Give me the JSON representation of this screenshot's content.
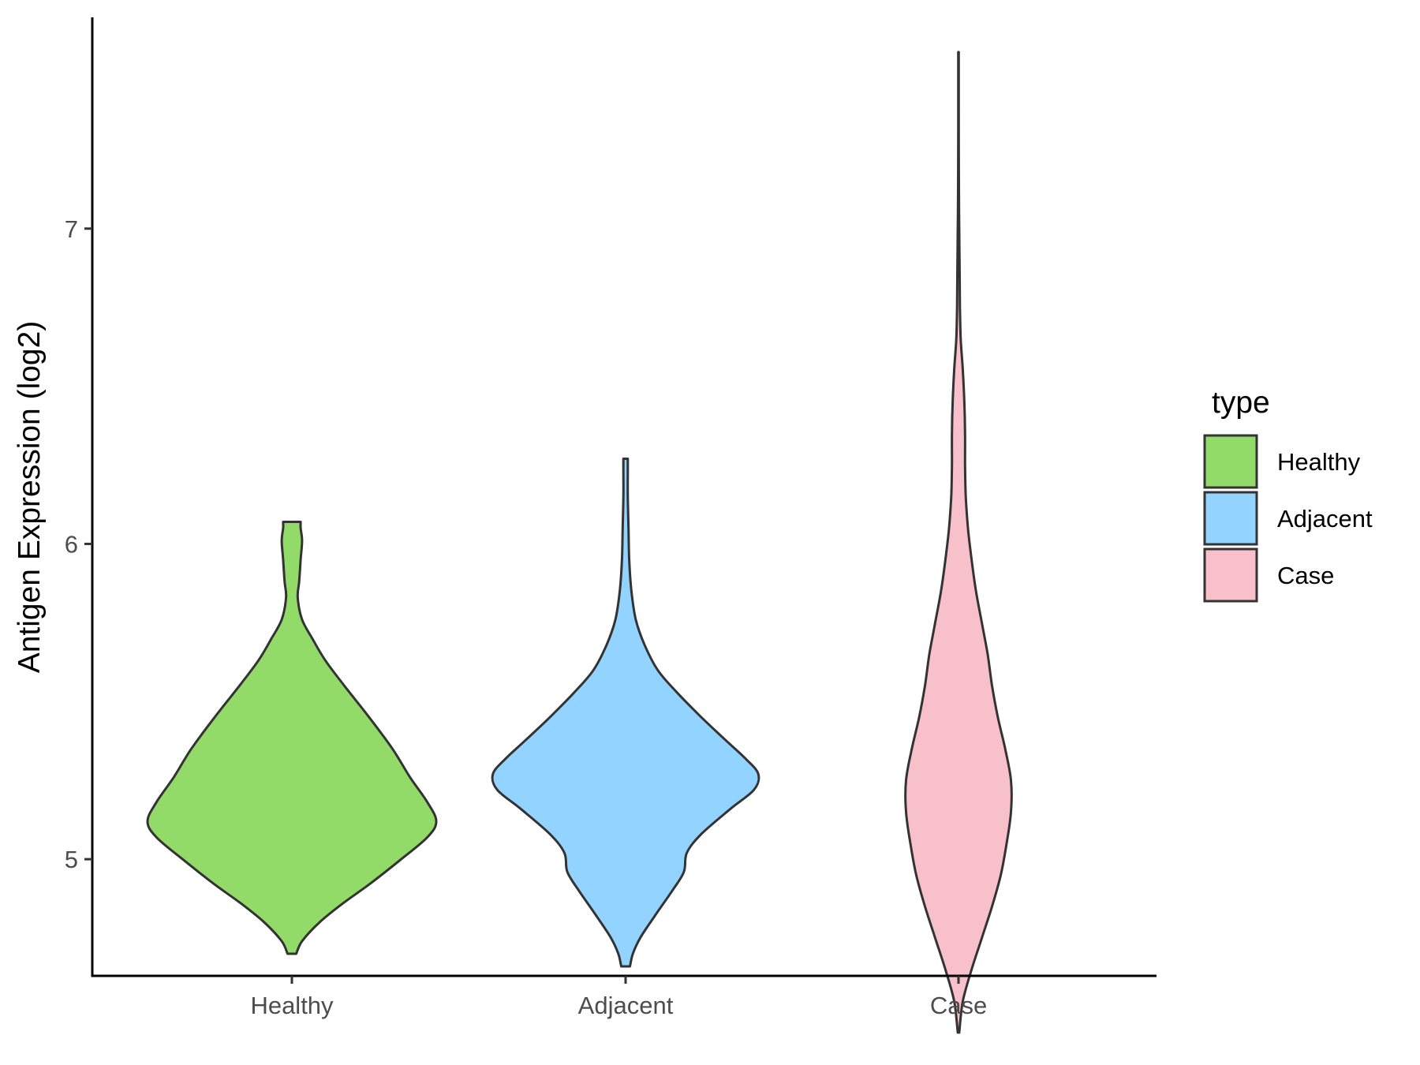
{
  "chart_data": {
    "type": "violin",
    "title": "",
    "xlabel": "",
    "ylabel": "Antigen Expression (log2)",
    "ylim": [
      4.63,
      7.67
    ],
    "yticks": [
      5,
      6,
      7
    ],
    "yticklabels": [
      "5",
      "6",
      "7"
    ],
    "grid": false,
    "categories": [
      "Healthy",
      "Adjacent",
      "Case"
    ],
    "series": [
      {
        "name": "Healthy",
        "color": "#93DB69",
        "range": [
          4.7,
          6.07
        ],
        "density": [
          [
            4.7,
            0.03
          ],
          [
            4.74,
            0.07
          ],
          [
            4.8,
            0.19
          ],
          [
            4.86,
            0.35
          ],
          [
            4.92,
            0.53
          ],
          [
            5.0,
            0.75
          ],
          [
            5.07,
            0.93
          ],
          [
            5.12,
            0.99
          ],
          [
            5.18,
            0.93
          ],
          [
            5.26,
            0.81
          ],
          [
            5.35,
            0.69
          ],
          [
            5.45,
            0.53
          ],
          [
            5.55,
            0.36
          ],
          [
            5.63,
            0.23
          ],
          [
            5.7,
            0.14
          ],
          [
            5.76,
            0.07
          ],
          [
            5.83,
            0.04
          ],
          [
            5.88,
            0.05
          ],
          [
            5.95,
            0.06
          ],
          [
            6.01,
            0.07
          ],
          [
            6.05,
            0.06
          ],
          [
            6.07,
            0.06
          ]
        ]
      },
      {
        "name": "Adjacent",
        "color": "#92D3FF",
        "range": [
          4.66,
          6.27
        ],
        "density": [
          [
            4.66,
            0.03
          ],
          [
            4.7,
            0.05
          ],
          [
            4.75,
            0.1
          ],
          [
            4.82,
            0.2
          ],
          [
            4.9,
            0.32
          ],
          [
            4.96,
            0.4
          ],
          [
            5.02,
            0.42
          ],
          [
            5.08,
            0.52
          ],
          [
            5.16,
            0.72
          ],
          [
            5.22,
            0.88
          ],
          [
            5.27,
            0.91
          ],
          [
            5.32,
            0.82
          ],
          [
            5.38,
            0.68
          ],
          [
            5.45,
            0.52
          ],
          [
            5.53,
            0.35
          ],
          [
            5.6,
            0.22
          ],
          [
            5.68,
            0.13
          ],
          [
            5.76,
            0.07
          ],
          [
            5.85,
            0.04
          ],
          [
            5.95,
            0.025
          ],
          [
            6.05,
            0.02
          ],
          [
            6.15,
            0.015
          ],
          [
            6.22,
            0.015
          ],
          [
            6.27,
            0.015
          ]
        ]
      },
      {
        "name": "Case",
        "color": "#F7C0CB",
        "range": [
          4.45,
          7.56
        ],
        "density": [
          [
            4.45,
            0.005
          ],
          [
            4.55,
            0.03
          ],
          [
            4.65,
            0.09
          ],
          [
            4.75,
            0.16
          ],
          [
            4.85,
            0.23
          ],
          [
            4.95,
            0.29
          ],
          [
            5.05,
            0.33
          ],
          [
            5.15,
            0.36
          ],
          [
            5.25,
            0.36
          ],
          [
            5.35,
            0.32
          ],
          [
            5.45,
            0.27
          ],
          [
            5.55,
            0.23
          ],
          [
            5.65,
            0.2
          ],
          [
            5.75,
            0.16
          ],
          [
            5.85,
            0.12
          ],
          [
            5.95,
            0.09
          ],
          [
            6.05,
            0.065
          ],
          [
            6.15,
            0.05
          ],
          [
            6.25,
            0.045
          ],
          [
            6.35,
            0.045
          ],
          [
            6.45,
            0.04
          ],
          [
            6.55,
            0.03
          ],
          [
            6.65,
            0.015
          ],
          [
            6.75,
            0.01
          ],
          [
            6.85,
            0.008
          ],
          [
            6.95,
            0.006
          ],
          [
            7.05,
            0.004
          ],
          [
            7.2,
            0.002
          ],
          [
            7.4,
            0.0015
          ],
          [
            7.56,
            0.0015
          ]
        ]
      }
    ],
    "legend": {
      "title": "type",
      "position": "right",
      "entries": [
        "Healthy",
        "Adjacent",
        "Case"
      ]
    }
  }
}
